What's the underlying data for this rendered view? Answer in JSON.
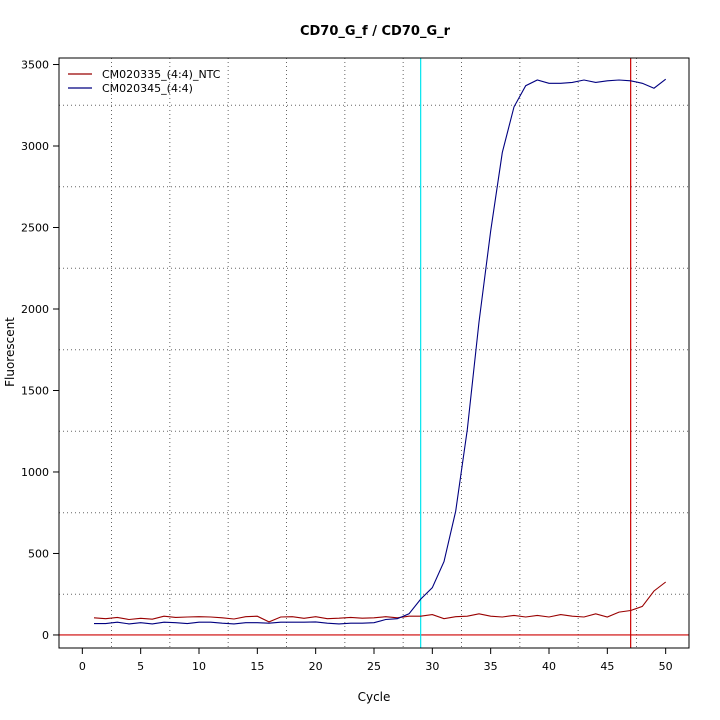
{
  "chart_data": {
    "type": "line",
    "title": "CD70_G_f / CD70_G_r",
    "xlabel": "Cycle",
    "ylabel": "Fluorescent",
    "xlim": [
      -2,
      52
    ],
    "ylim": [
      -80,
      3540
    ],
    "x_ticks": [
      0,
      5,
      10,
      15,
      20,
      25,
      30,
      35,
      40,
      45,
      50
    ],
    "y_ticks": [
      0,
      500,
      1000,
      1500,
      2000,
      2500,
      3000,
      3500
    ],
    "grid": true,
    "legend_position": "top-left",
    "threshold_line": {
      "value": 0,
      "color": "#cc0000"
    },
    "vertical_lines": [
      {
        "x": 29,
        "color": "#00e5ee"
      },
      {
        "x": 47,
        "color": "#cc0000"
      }
    ],
    "series": [
      {
        "name": "CM020335_(4:4)_NTC",
        "color": "#990000",
        "x": [
          1,
          2,
          3,
          4,
          5,
          6,
          7,
          8,
          9,
          10,
          11,
          12,
          13,
          14,
          15,
          16,
          17,
          18,
          19,
          20,
          21,
          22,
          23,
          24,
          25,
          26,
          27,
          28,
          29,
          30,
          31,
          32,
          33,
          34,
          35,
          36,
          37,
          38,
          39,
          40,
          41,
          42,
          43,
          44,
          45,
          46,
          47,
          48,
          49,
          50
        ],
        "values": [
          105,
          100,
          108,
          95,
          102,
          97,
          115,
          108,
          110,
          112,
          110,
          105,
          98,
          112,
          115,
          80,
          110,
          112,
          102,
          112,
          100,
          103,
          108,
          103,
          105,
          112,
          105,
          115,
          115,
          125,
          100,
          112,
          115,
          130,
          115,
          110,
          120,
          110,
          120,
          110,
          125,
          115,
          110,
          130,
          110,
          140,
          150,
          175,
          270,
          325
        ]
      },
      {
        "name": "CM020345_(4:4)",
        "color": "#000080",
        "x": [
          1,
          2,
          3,
          4,
          5,
          6,
          7,
          8,
          9,
          10,
          11,
          12,
          13,
          14,
          15,
          16,
          17,
          18,
          19,
          20,
          21,
          22,
          23,
          24,
          25,
          26,
          27,
          28,
          29,
          30,
          31,
          32,
          33,
          34,
          35,
          36,
          37,
          38,
          39,
          40,
          41,
          42,
          43,
          44,
          45,
          46,
          47,
          48,
          49,
          50
        ],
        "values": [
          70,
          70,
          78,
          68,
          75,
          68,
          78,
          75,
          70,
          78,
          78,
          72,
          68,
          75,
          75,
          72,
          78,
          78,
          78,
          80,
          72,
          68,
          72,
          72,
          75,
          95,
          100,
          130,
          220,
          290,
          450,
          760,
          1260,
          1920,
          2480,
          2960,
          3240,
          3370,
          3405,
          3385,
          3385,
          3390,
          3405,
          3390,
          3400,
          3405,
          3400,
          3385,
          3355,
          3410
        ]
      }
    ]
  }
}
